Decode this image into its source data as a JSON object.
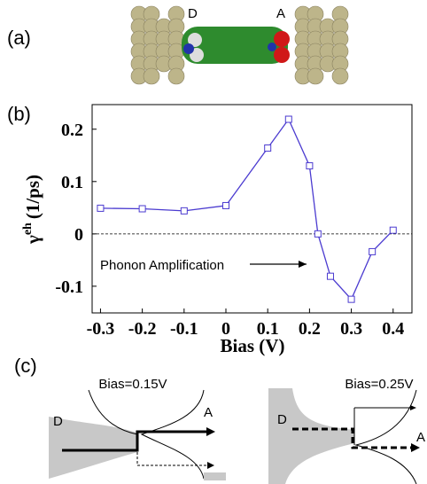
{
  "panel_labels": [
    "(a)",
    "(b)",
    "(c)"
  ],
  "molecule": {
    "donor": "D",
    "acceptor": "A"
  },
  "chart_data": {
    "type": "line",
    "x_label": "Bias (V)",
    "y_label": {
      "symbol": "γ",
      "superscript": "eh",
      "unit": "(1/ps)"
    },
    "annotation": "Phonon Amplification",
    "x": [
      -0.3,
      -0.2,
      -0.1,
      0,
      0.1,
      0.15,
      0.2,
      0.22,
      0.25,
      0.3,
      0.35,
      0.4
    ],
    "series": [
      {
        "color": "#4b3bd0",
        "values": [
          0.049,
          0.048,
          0.044,
          0.054,
          0.164,
          0.219,
          0.13,
          0.0,
          -0.081,
          -0.125,
          -0.034,
          0.007
        ]
      }
    ],
    "xlim": [
      -0.32,
      0.445
    ],
    "ylim": [
      -0.151,
      0.247
    ],
    "xticks": [
      -0.3,
      -0.2,
      -0.1,
      0,
      0.1,
      0.2,
      0.3,
      0.4
    ],
    "yticks": [
      -0.1,
      0,
      0.1,
      0.2
    ],
    "reference_line": 0
  },
  "diagrams": [
    {
      "title": "Bias=0.15V",
      "left": "D",
      "right": "A"
    },
    {
      "title": "Bias=0.25V",
      "left": "D",
      "right": "A"
    }
  ]
}
